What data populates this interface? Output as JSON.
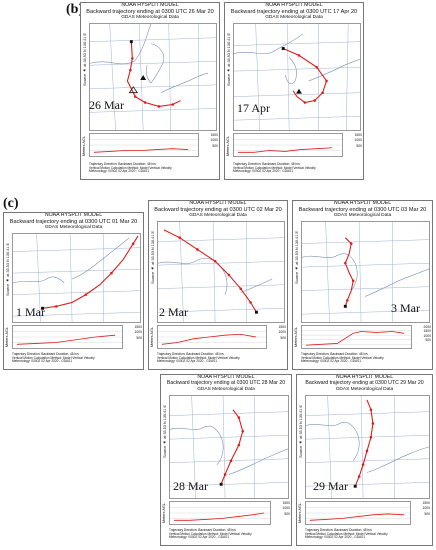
{
  "labels": {
    "b": "(b)",
    "c": "(c)"
  },
  "common": {
    "model": "NOAA HYSPLIT MODEL",
    "met": "GDAS Meteorological Data",
    "source_axis": "Source ★ at 33.53 N 130.41 E",
    "alt_axis": "Meters AGL",
    "alt_ticks_small": [
      "1500",
      "1000",
      "500"
    ],
    "alt_ticks_large": [
      "2000",
      "1500",
      "1000",
      "500"
    ],
    "foot1": "Trajectory Direction: Backward   Duration: 48 hrs",
    "foot2": "Vertical Motion Calculation Method: Model Vertical Velocity",
    "foot3": "Meteorology: 0000Z 02 Apr 2020 - GDAS1"
  },
  "panels": [
    {
      "id": "mar26",
      "title": "Backward trajectory ending at 0300 UTC 26 Mar 20",
      "date": "26 Mar"
    },
    {
      "id": "apr17",
      "title": "Backward trajectory ending at 0300 UTC 17 Apr 20",
      "date": "17 Apr"
    },
    {
      "id": "mar01",
      "title": "Backward trajectory ending at 0300 UTC 01 Mar 20",
      "date": "1 Mar"
    },
    {
      "id": "mar02",
      "title": "Backward trajectory ending at 0300 UTC 02 Mar 20",
      "date": "2 Mar"
    },
    {
      "id": "mar03",
      "title": "Backward trajectory ending at 0300 UTC 03 Mar 20",
      "date": "3 Mar"
    },
    {
      "id": "mar28",
      "title": "Backward trajectory ending at 0300 UTC 28 Mar 20",
      "date": "28 Mar"
    },
    {
      "id": "mar29",
      "title": "Backward trajectory ending at 0300 UTC 29 Mar 20",
      "date": "29 Mar"
    }
  ],
  "colors": {
    "trajectory": "#e11b1b",
    "grid": "#9db0d6",
    "coast": "#7a8fb8"
  }
}
